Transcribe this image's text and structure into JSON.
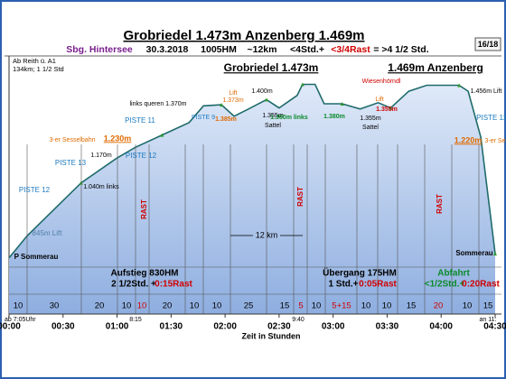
{
  "chart_data": {
    "type": "area",
    "title": "Grobriedel 1.473m  Anzenberg 1.469m",
    "subtitle": [
      "Sbg. Hintersee",
      "30.3.2018",
      "1005HM",
      "~12km",
      "<4Std.+",
      "<3/4Rast",
      "= >4 1/2 Std."
    ],
    "page": "16/18",
    "x_label": "Zeit in Stunden",
    "x": [
      0,
      10,
      40,
      60,
      70,
      85,
      100,
      108,
      118,
      125,
      133,
      143,
      150,
      160,
      163,
      170,
      175,
      185,
      195,
      205,
      212,
      222,
      232,
      250,
      255,
      262,
      270
    ],
    "values": [
      640,
      745,
      1000,
      1120,
      1170,
      1230,
      1290,
      1370,
      1375,
      1320,
      1355,
      1400,
      1360,
      1420,
      1473,
      1473,
      1380,
      1380,
      1355,
      1385,
      1360,
      1440,
      1469,
      1469,
      1440,
      1220,
      660
    ],
    "color": "#1f6b6b",
    "fill": "#a9c3ea",
    "xlim": [
      0,
      270
    ],
    "ylim": [
      370,
      1510
    ],
    "xticks": [
      {
        "value": 0,
        "label": "00:00"
      },
      {
        "value": 30,
        "label": "00:30"
      },
      {
        "value": 60,
        "label": "01:00"
      },
      {
        "value": 90,
        "label": "01:30"
      },
      {
        "value": 120,
        "label": "02:00"
      },
      {
        "value": 150,
        "label": "02:30"
      },
      {
        "value": 180,
        "label": "03:00"
      },
      {
        "value": 210,
        "label": "03:30"
      },
      {
        "value": 240,
        "label": "04:00"
      },
      {
        "value": 270,
        "label": "04:30"
      }
    ],
    "annotations": [
      "Ab Reith ü. A1",
      "134km; 1 1/2 Std",
      "Grobriedel 1.473m",
      "1.469m Anzenberg",
      "Wiesenhörndl",
      "Lift",
      "1.373m",
      "1.400m",
      "links queren 1.370m",
      "PISTE 11",
      "PISTE 9",
      "1.355m",
      "Sattel",
      "1.360m links",
      "1.380m",
      "1.355m",
      "Sattel",
      "Lift",
      "1.355m",
      "1.456m Lift",
      "PISTE 11",
      "1.385m",
      "3-er Sesselbahn",
      "1.230m",
      "1.220m",
      "3-er Se",
      "PISTE 13",
      "1.170m",
      "PISTE 12",
      "1.040m links",
      "PISTE 12",
      "845m Lift",
      "P Sommerau",
      "Sommerau",
      "12 km",
      "Aufstieg 830HM",
      "2 1/2Std. +",
      "0:15Rast",
      "Übergang 175HM",
      "1 Std.+",
      "0:05Rast",
      "Abfahrt",
      "<1/2Std.+",
      "0:20Rast",
      "RAST",
      "RAST",
      "RAST",
      "ab 7:05Uhr",
      "8:15",
      "9:40",
      "an 11:"
    ],
    "segments": [
      "10",
      "30",
      "20",
      "10",
      "10",
      "20",
      "10",
      "10",
      "25",
      "15",
      "5",
      "10",
      "5+15",
      "10",
      "10",
      "15",
      "20",
      "10",
      "15"
    ]
  }
}
